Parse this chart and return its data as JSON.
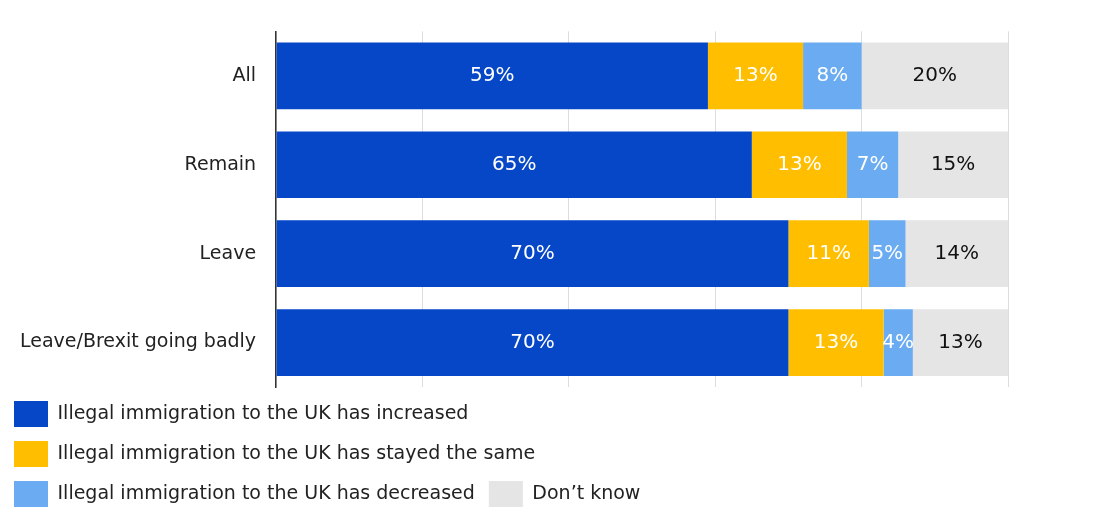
{
  "chart_data": {
    "type": "bar",
    "orientation": "horizontal",
    "stacked": true,
    "categories": [
      "All",
      "Remain",
      "Leave",
      "Leave/Brexit going badly"
    ],
    "series": [
      {
        "name": "Illegal immigration to the UK has increased",
        "color": "#0647c8",
        "values": [
          59,
          65,
          70,
          70
        ],
        "value_labels": [
          "59%",
          "65%",
          "70%",
          "70%"
        ]
      },
      {
        "name": "Illegal immigration to the UK has stayed the same",
        "color": "#ffbf00",
        "values": [
          13,
          13,
          11,
          13
        ],
        "value_labels": [
          "13%",
          "13%",
          "11%",
          "13%"
        ]
      },
      {
        "name": "Illegal immigration to the UK has decreased",
        "color": "#6aabf2",
        "values": [
          8,
          7,
          5,
          4
        ],
        "value_labels": [
          "8%",
          "7%",
          "5%",
          "4%"
        ]
      },
      {
        "name": "Don’t know",
        "color": "#e5e5e5",
        "values": [
          20,
          15,
          14,
          13
        ],
        "value_labels": [
          "20%",
          "15%",
          "14%",
          "13%"
        ]
      }
    ],
    "xlim": [
      0,
      100
    ],
    "xticks": [
      {
        "value": 0,
        "label": null
      },
      {
        "value": 20,
        "label": null
      },
      {
        "value": 40,
        "label": null
      },
      {
        "value": 60,
        "label": null
      },
      {
        "value": 80,
        "label": null
      },
      {
        "value": 100,
        "label": null
      }
    ],
    "tick_labels": "y",
    "grid": "x",
    "legend": "bottom"
  }
}
